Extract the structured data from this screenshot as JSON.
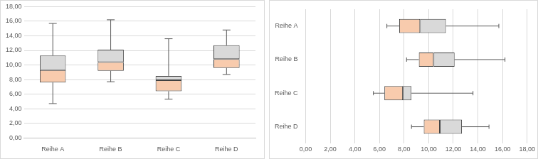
{
  "chart_data": [
    {
      "type": "boxplot",
      "categories": [
        "Reihe A",
        "Reihe B",
        "Reihe C",
        "Reihe D"
      ],
      "min": [
        4.7,
        7.7,
        5.3,
        8.7
      ],
      "q1": [
        7.6,
        9.2,
        6.4,
        9.6
      ],
      "median": [
        9.3,
        10.4,
        7.9,
        10.8
      ],
      "q3": [
        11.3,
        12.1,
        8.5,
        12.7
      ],
      "max": [
        15.7,
        16.2,
        13.6,
        14.8
      ],
      "colors": [
        "#F8CBAD",
        "#D9D9D9"
      ],
      "ylim": [
        0,
        18
      ],
      "yticks": [
        {
          "value": 0,
          "label": "0,00"
        },
        {
          "value": 2,
          "label": "2,00"
        },
        {
          "value": 4,
          "label": "4,00"
        },
        {
          "value": 6,
          "label": "6,00"
        },
        {
          "value": 8,
          "label": "8,00"
        },
        {
          "value": 10,
          "label": "10,00"
        },
        {
          "value": 12,
          "label": "12,00"
        },
        {
          "value": 14,
          "label": "14,00"
        },
        {
          "value": 16,
          "label": "16,00"
        },
        {
          "value": 18,
          "label": "18,00"
        }
      ],
      "grid": true
    },
    {
      "type": "boxplot",
      "orientation": "horizontal",
      "categories": [
        "Reihe A",
        "Reihe B",
        "Reihe C",
        "Reihe D"
      ],
      "min": [
        6.6,
        8.2,
        5.5,
        8.6
      ],
      "q1": [
        7.6,
        9.2,
        6.4,
        9.6
      ],
      "median": [
        9.3,
        10.4,
        7.9,
        10.9
      ],
      "q3": [
        11.4,
        12.1,
        8.6,
        12.7
      ],
      "max": [
        15.7,
        16.2,
        13.6,
        14.9
      ],
      "colors": [
        "#F8CBAD",
        "#D9D9D9"
      ],
      "xlim": [
        0,
        18
      ],
      "xticks": [
        {
          "value": 0,
          "label": "0,00"
        },
        {
          "value": 2,
          "label": "2,00"
        },
        {
          "value": 4,
          "label": "4,00"
        },
        {
          "value": 6,
          "label": "6,00"
        },
        {
          "value": 8,
          "label": "8,00"
        },
        {
          "value": 10,
          "label": "10,00"
        },
        {
          "value": 12,
          "label": "12,00"
        },
        {
          "value": 14,
          "label": "14,00"
        },
        {
          "value": 16,
          "label": "16,00"
        },
        {
          "value": 18,
          "label": "18,00"
        }
      ],
      "grid": true
    }
  ]
}
